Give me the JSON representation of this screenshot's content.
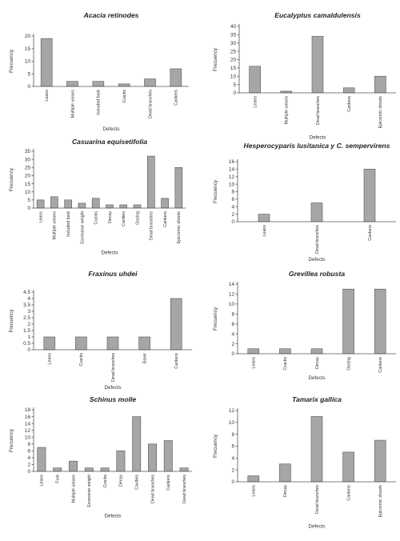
{
  "chart_data": [
    {
      "type": "bar",
      "title": "Acacia retinodes",
      "xlabel": "Defects",
      "ylabel": "Frecuency",
      "ylim": [
        0,
        20
      ],
      "yticks": [
        0,
        5,
        10,
        15,
        20
      ],
      "grid": false,
      "categories": [
        "Leans",
        "Multiple unions",
        "Included bark",
        "Cracks",
        "Dead branches",
        "Cankers"
      ],
      "values": [
        19,
        2,
        2,
        1,
        3,
        7
      ]
    },
    {
      "type": "bar",
      "title": "Eucalyptus camaldulensis",
      "xlabel": "Defects",
      "ylabel": "Frecuency",
      "ylim": [
        0,
        40
      ],
      "yticks": [
        0,
        5,
        10,
        15,
        20,
        25,
        30,
        35,
        40
      ],
      "grid": false,
      "categories": [
        "Leans",
        "Multiple unions",
        "Dead branches",
        "Cankers",
        "Epicormic shoots"
      ],
      "values": [
        16,
        1,
        34,
        3,
        10
      ]
    },
    {
      "type": "bar",
      "title": "Casuarina equisetifolia",
      "xlabel": "Defects",
      "ylabel": "Frecuency",
      "ylim": [
        0,
        35
      ],
      "yticks": [
        0,
        5,
        10,
        15,
        20,
        25,
        30,
        35
      ],
      "grid": false,
      "categories": [
        "Leans",
        "Multiple unions",
        "Included bark",
        "Excessive weight",
        "Cracks",
        "Decay",
        "Cavities",
        "Oozing",
        "Dead branches",
        "Cankers",
        "Epicormic shoots"
      ],
      "values": [
        5,
        7,
        5,
        3,
        6,
        2,
        2,
        2,
        32,
        6,
        25
      ]
    },
    {
      "type": "bar",
      "title": "Hesperocyparis lusitanica y C. sempervirens",
      "xlabel": "Defects",
      "ylabel": "Frecuency",
      "ylim": [
        0,
        16
      ],
      "yticks": [
        0,
        2,
        4,
        6,
        8,
        10,
        12,
        14,
        16
      ],
      "grid": false,
      "categories": [
        "Leans",
        "Dead branches",
        "Cankers"
      ],
      "values": [
        2,
        5,
        14
      ]
    },
    {
      "type": "bar",
      "title": "Fraxinus uhdei",
      "xlabel": "Defects",
      "ylabel": "Frecuency",
      "ylim": [
        0,
        4.5
      ],
      "yticks": [
        0,
        0.5,
        1,
        1.5,
        2,
        2.5,
        3,
        3.5,
        4,
        4.5
      ],
      "grid": false,
      "categories": [
        "Leans",
        "Cracks",
        "Dead branches",
        "Borer",
        "Cankers"
      ],
      "values": [
        1,
        1,
        1,
        1,
        4
      ]
    },
    {
      "type": "bar",
      "title": "Grevillea robusta",
      "xlabel": "Defects",
      "ylabel": "Frecuency",
      "ylim": [
        0,
        14
      ],
      "yticks": [
        0,
        2,
        4,
        6,
        8,
        10,
        12,
        14
      ],
      "grid": false,
      "categories": [
        "Leans",
        "Cracks",
        "Decay",
        "Oozing",
        "Cankers"
      ],
      "values": [
        1,
        1,
        1,
        13,
        13
      ]
    },
    {
      "type": "bar",
      "title": "Schinus molle",
      "xlabel": "Defects",
      "ylabel": "Frecuency",
      "ylim": [
        0,
        18
      ],
      "yticks": [
        0,
        2,
        4,
        6,
        8,
        10,
        12,
        14,
        16,
        18
      ],
      "grid": false,
      "categories": [
        "Leans",
        "Fork",
        "Multiple unions",
        "Excessive weight",
        "Cracks",
        "Decay",
        "Cavities",
        "Dead branches",
        "Cankers",
        "Dead branches"
      ],
      "values": [
        7,
        1,
        3,
        1,
        1,
        6,
        16,
        8,
        9,
        1
      ]
    },
    {
      "type": "bar",
      "title": "Tamarix gallica",
      "xlabel": "Defects",
      "ylabel": "Frecuency",
      "ylim": [
        0,
        12
      ],
      "yticks": [
        0,
        2,
        4,
        6,
        8,
        10,
        12
      ],
      "grid": false,
      "categories": [
        "Leans",
        "Decay",
        "Dead branches",
        "Cankers",
        "Epicormic shoots"
      ],
      "values": [
        1,
        3,
        11,
        5,
        7
      ]
    }
  ]
}
